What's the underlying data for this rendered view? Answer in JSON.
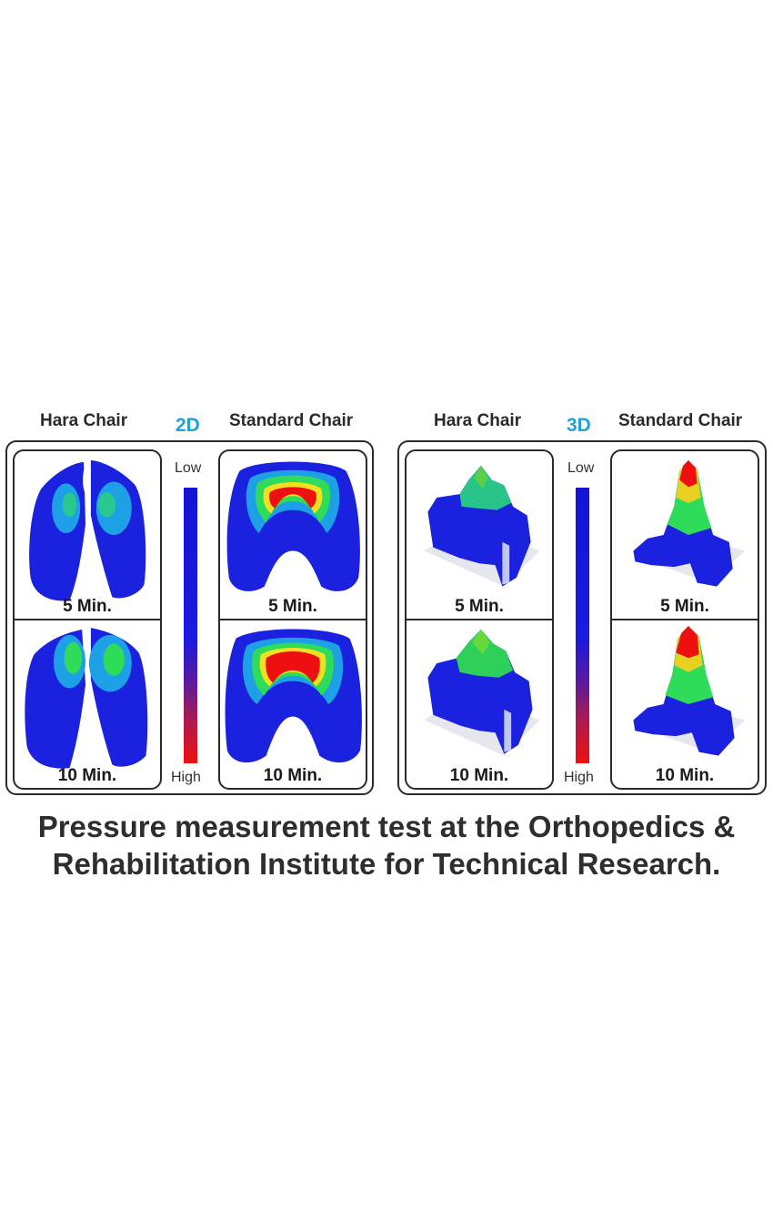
{
  "figure": {
    "left": {
      "mode_label": "2D",
      "hara_label": "Hara Chair",
      "standard_label": "Standard Chair",
      "scale": {
        "low": "Low",
        "high": "High"
      },
      "captions": {
        "top": "5 Min.",
        "bottom": "10 Min."
      }
    },
    "right": {
      "mode_label": "3D",
      "hara_label": "Hara Chair",
      "standard_label": "Standard Chair",
      "scale": {
        "low": "Low",
        "high": "High"
      },
      "captions": {
        "top": "5 Min.",
        "bottom": "10 Min."
      }
    },
    "colors": {
      "low": "#1414d8",
      "mid": "#22cc44",
      "high": "#ee1010",
      "accent_label": "#1fa0d8"
    }
  },
  "caption": {
    "line1": "Pressure measurement test at the Orthopedics &",
    "line2": "Rehabilitation Institute for Technical Research."
  }
}
